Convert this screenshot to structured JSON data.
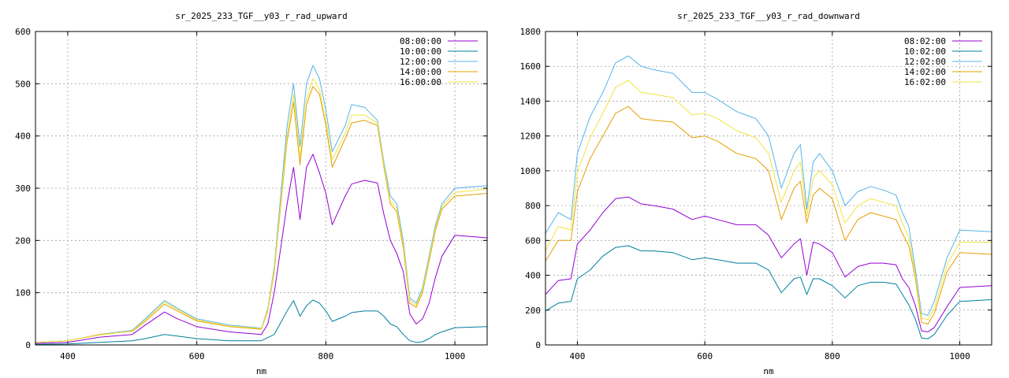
{
  "colors": {
    "s08": "#9400d3",
    "s10": "#007f9f",
    "s12": "#56b4e9",
    "s14": "#e69f00",
    "s16": "#f0e442"
  },
  "chart_data": [
    {
      "type": "line",
      "title": "sr_2025_233_TGF__y03_r_rad_upward",
      "xlabel": "nm",
      "ylabel": "",
      "xlim": [
        350,
        1050
      ],
      "ylim": [
        0,
        600
      ],
      "xticks": [
        400,
        600,
        800,
        1000
      ],
      "yticks": [
        0,
        100,
        200,
        300,
        400,
        500,
        600
      ],
      "grid": true,
      "legend_position": "top-right",
      "series": [
        {
          "name": "08:00:00",
          "color_key": "s08",
          "x": [
            350,
            400,
            450,
            500,
            520,
            550,
            570,
            600,
            650,
            700,
            710,
            720,
            740,
            750,
            760,
            770,
            780,
            790,
            800,
            810,
            830,
            840,
            860,
            880,
            890,
            900,
            910,
            920,
            930,
            940,
            950,
            960,
            970,
            980,
            1000,
            1050
          ],
          "y": [
            3,
            5,
            15,
            20,
            38,
            63,
            50,
            35,
            25,
            20,
            40,
            100,
            270,
            340,
            240,
            340,
            365,
            330,
            290,
            230,
            285,
            308,
            315,
            310,
            250,
            200,
            175,
            140,
            60,
            40,
            50,
            80,
            130,
            170,
            210,
            205
          ]
        },
        {
          "name": "10:00:00",
          "color_key": "s10",
          "x": [
            350,
            400,
            450,
            500,
            520,
            550,
            570,
            600,
            650,
            700,
            720,
            740,
            750,
            760,
            770,
            780,
            790,
            800,
            810,
            830,
            840,
            860,
            880,
            890,
            900,
            910,
            920,
            930,
            940,
            950,
            960,
            970,
            980,
            1000,
            1050
          ],
          "y": [
            1,
            2,
            5,
            8,
            12,
            20,
            17,
            12,
            8,
            8,
            20,
            65,
            85,
            55,
            75,
            86,
            80,
            65,
            45,
            55,
            62,
            65,
            65,
            55,
            40,
            35,
            20,
            8,
            5,
            6,
            12,
            20,
            25,
            33,
            35
          ]
        },
        {
          "name": "12:00:00",
          "color_key": "s12",
          "x": [
            350,
            400,
            450,
            500,
            520,
            550,
            570,
            600,
            650,
            700,
            710,
            720,
            740,
            750,
            760,
            770,
            780,
            790,
            800,
            810,
            830,
            840,
            860,
            880,
            890,
            900,
            910,
            920,
            930,
            940,
            950,
            960,
            970,
            980,
            1000,
            1050
          ],
          "y": [
            5,
            8,
            20,
            28,
            50,
            85,
            70,
            50,
            38,
            32,
            70,
            150,
            420,
            500,
            380,
            500,
            535,
            510,
            450,
            370,
            420,
            460,
            455,
            430,
            350,
            285,
            270,
            200,
            90,
            80,
            110,
            170,
            230,
            270,
            300,
            305
          ]
        },
        {
          "name": "14:00:00",
          "color_key": "s14",
          "x": [
            350,
            400,
            450,
            500,
            520,
            550,
            570,
            600,
            650,
            700,
            710,
            720,
            740,
            750,
            760,
            770,
            780,
            790,
            800,
            810,
            830,
            840,
            860,
            880,
            890,
            900,
            910,
            920,
            930,
            940,
            950,
            960,
            970,
            980,
            1000,
            1050
          ],
          "y": [
            5,
            8,
            20,
            26,
            45,
            78,
            65,
            46,
            35,
            30,
            65,
            140,
            390,
            465,
            345,
            460,
            495,
            480,
            420,
            340,
            395,
            425,
            430,
            420,
            340,
            270,
            255,
            185,
            80,
            72,
            100,
            160,
            220,
            260,
            285,
            290
          ]
        },
        {
          "name": "16:00:00",
          "color_key": "s16",
          "x": [
            350,
            400,
            450,
            500,
            520,
            550,
            570,
            600,
            650,
            700,
            710,
            720,
            740,
            750,
            760,
            770,
            780,
            790,
            800,
            810,
            830,
            840,
            860,
            880,
            890,
            900,
            910,
            920,
            930,
            940,
            950,
            960,
            970,
            980,
            1000,
            1050
          ],
          "y": [
            5,
            8,
            19,
            27,
            48,
            82,
            68,
            48,
            36,
            31,
            68,
            145,
            400,
            480,
            360,
            470,
            510,
            490,
            430,
            355,
            405,
            440,
            440,
            425,
            345,
            275,
            262,
            192,
            85,
            76,
            105,
            165,
            225,
            265,
            292,
            298
          ]
        }
      ]
    },
    {
      "type": "line",
      "title": "sr_2025_233_TGF__y03_r_rad_downward",
      "xlabel": "nm",
      "ylabel": "",
      "xlim": [
        350,
        1050
      ],
      "ylim": [
        0,
        1800
      ],
      "xticks": [
        400,
        600,
        800,
        1000
      ],
      "yticks": [
        0,
        200,
        400,
        600,
        800,
        1000,
        1200,
        1400,
        1600,
        1800
      ],
      "grid": true,
      "legend_position": "top-right",
      "series": [
        {
          "name": "08:02:00",
          "color_key": "s08",
          "x": [
            350,
            370,
            390,
            400,
            420,
            440,
            460,
            480,
            500,
            520,
            550,
            580,
            600,
            620,
            650,
            680,
            700,
            720,
            740,
            750,
            760,
            770,
            780,
            800,
            820,
            840,
            860,
            880,
            900,
            910,
            920,
            930,
            940,
            950,
            960,
            980,
            1000,
            1050
          ],
          "y": [
            290,
            370,
            380,
            580,
            660,
            760,
            840,
            850,
            810,
            800,
            780,
            720,
            740,
            720,
            690,
            690,
            630,
            500,
            580,
            610,
            400,
            590,
            580,
            530,
            390,
            450,
            470,
            470,
            460,
            380,
            330,
            230,
            80,
            75,
            100,
            220,
            330,
            340
          ]
        },
        {
          "name": "10:02:00",
          "color_key": "s10",
          "x": [
            350,
            370,
            390,
            400,
            420,
            440,
            460,
            480,
            500,
            520,
            550,
            580,
            600,
            620,
            650,
            680,
            700,
            720,
            740,
            750,
            760,
            770,
            780,
            800,
            820,
            840,
            860,
            880,
            900,
            910,
            920,
            930,
            940,
            950,
            960,
            980,
            1000,
            1050
          ],
          "y": [
            195,
            240,
            250,
            380,
            430,
            510,
            560,
            570,
            540,
            540,
            530,
            490,
            500,
            490,
            470,
            470,
            430,
            300,
            380,
            390,
            290,
            380,
            380,
            340,
            270,
            340,
            360,
            360,
            350,
            290,
            230,
            150,
            40,
            35,
            60,
            170,
            250,
            260
          ]
        },
        {
          "name": "12:02:00",
          "color_key": "s12",
          "x": [
            350,
            370,
            390,
            400,
            420,
            440,
            460,
            480,
            500,
            520,
            550,
            580,
            600,
            620,
            650,
            680,
            700,
            720,
            740,
            750,
            760,
            770,
            780,
            800,
            820,
            840,
            860,
            880,
            900,
            910,
            920,
            930,
            940,
            950,
            960,
            980,
            1000,
            1050
          ],
          "y": [
            640,
            760,
            720,
            1100,
            1310,
            1450,
            1620,
            1660,
            1600,
            1580,
            1560,
            1450,
            1450,
            1410,
            1340,
            1300,
            1200,
            900,
            1100,
            1150,
            780,
            1050,
            1100,
            1000,
            800,
            880,
            910,
            890,
            860,
            760,
            680,
            440,
            180,
            170,
            250,
            500,
            660,
            650
          ]
        },
        {
          "name": "14:02:00",
          "color_key": "s14",
          "x": [
            350,
            370,
            390,
            400,
            420,
            440,
            460,
            480,
            500,
            520,
            550,
            580,
            600,
            620,
            650,
            680,
            700,
            720,
            740,
            750,
            760,
            770,
            780,
            800,
            820,
            840,
            860,
            880,
            900,
            910,
            920,
            930,
            940,
            950,
            960,
            980,
            1000,
            1050
          ],
          "y": [
            480,
            600,
            600,
            880,
            1070,
            1200,
            1330,
            1370,
            1300,
            1290,
            1280,
            1190,
            1200,
            1170,
            1100,
            1070,
            1000,
            720,
            900,
            940,
            700,
            860,
            900,
            840,
            600,
            720,
            760,
            740,
            720,
            640,
            570,
            390,
            130,
            120,
            180,
            420,
            530,
            520
          ]
        },
        {
          "name": "16:02:00",
          "color_key": "s16",
          "x": [
            350,
            370,
            390,
            400,
            420,
            440,
            460,
            480,
            500,
            520,
            550,
            580,
            600,
            620,
            650,
            680,
            700,
            720,
            740,
            750,
            760,
            770,
            780,
            800,
            820,
            840,
            860,
            880,
            900,
            910,
            920,
            930,
            940,
            950,
            960,
            980,
            1000,
            1050
          ],
          "y": [
            540,
            680,
            660,
            990,
            1190,
            1330,
            1480,
            1520,
            1450,
            1440,
            1420,
            1320,
            1330,
            1300,
            1230,
            1190,
            1100,
            820,
            1000,
            1050,
            740,
            960,
            1000,
            920,
            700,
            800,
            840,
            820,
            800,
            700,
            620,
            410,
            155,
            145,
            210,
            460,
            590,
            590
          ]
        }
      ]
    }
  ]
}
